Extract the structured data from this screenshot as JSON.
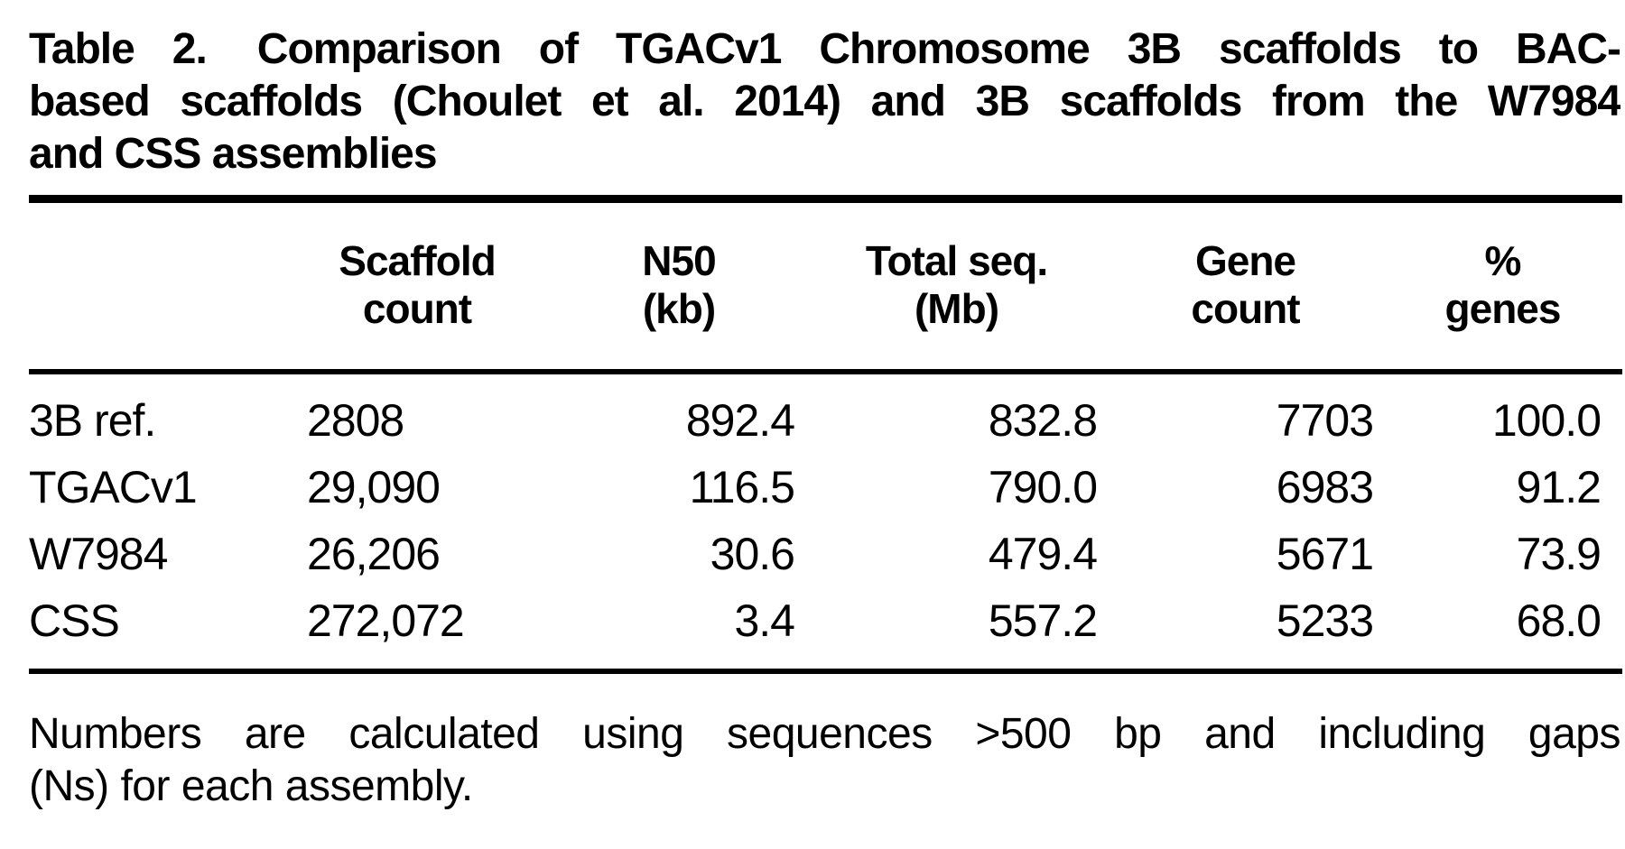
{
  "caption": {
    "label": "Table 2.",
    "lines": [
      "Comparison of TGACv1 Chromosome 3B scaffolds to BAC-",
      "based scaffolds (Choulet et al. 2014) and 3B scaffolds from the W7984",
      "and CSS assemblies"
    ]
  },
  "columns": [
    {
      "line1": "",
      "line2": ""
    },
    {
      "line1": "Scaffold",
      "line2": "count"
    },
    {
      "line1": "N50",
      "line2": "(kb)"
    },
    {
      "line1": "Total seq.",
      "line2": "(Mb)"
    },
    {
      "line1": "Gene",
      "line2": "count"
    },
    {
      "line1": "%",
      "line2": "genes"
    }
  ],
  "rows": [
    {
      "label": "3B ref.",
      "scaffold_count": "2808",
      "n50_kb": "892.4",
      "total_seq_mb": "832.8",
      "gene_count": "7703",
      "pct_genes": "100.0"
    },
    {
      "label": "TGACv1",
      "scaffold_count": "29,090",
      "n50_kb": "116.5",
      "total_seq_mb": "790.0",
      "gene_count": "6983",
      "pct_genes": "91.2"
    },
    {
      "label": "W7984",
      "scaffold_count": "26,206",
      "n50_kb": "30.6",
      "total_seq_mb": "479.4",
      "gene_count": "5671",
      "pct_genes": "73.9"
    },
    {
      "label": "CSS",
      "scaffold_count": "272,072",
      "n50_kb": "3.4",
      "total_seq_mb": "557.2",
      "gene_count": "5233",
      "pct_genes": "68.0"
    }
  ],
  "footnote": {
    "lines": [
      "Numbers are calculated using sequences >500 bp and including gaps",
      "(Ns) for each assembly."
    ]
  },
  "chart_data": {
    "type": "table",
    "title": "Table 2. Comparison of TGACv1 Chromosome 3B scaffolds to BAC-based scaffolds (Choulet et al. 2014) and 3B scaffolds from the W7984 and CSS assemblies",
    "columns": [
      "",
      "Scaffold count",
      "N50 (kb)",
      "Total seq. (Mb)",
      "Gene count",
      "% genes"
    ],
    "rows": [
      [
        "3B ref.",
        "2808",
        "892.4",
        "832.8",
        "7703",
        "100.0"
      ],
      [
        "TGACv1",
        "29,090",
        "116.5",
        "790.0",
        "6983",
        "91.2"
      ],
      [
        "W7984",
        "26,206",
        "30.6",
        "479.4",
        "5671",
        "73.9"
      ],
      [
        "CSS",
        "272,072",
        "3.4",
        "557.2",
        "5233",
        "68.0"
      ]
    ],
    "footnote": "Numbers are calculated using sequences >500 bp and including gaps (Ns) for each assembly."
  }
}
